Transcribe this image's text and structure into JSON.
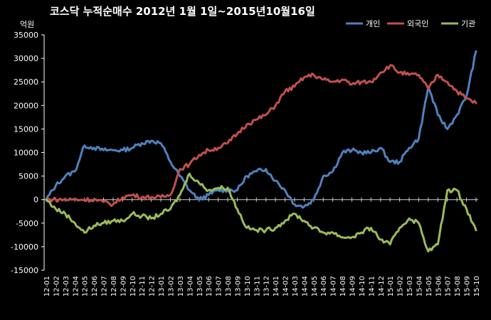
{
  "chart_data": {
    "type": "line",
    "title": "코스닥  누적순매수 2012년 1월 1일~2015년10월16일",
    "ylabel": "억원",
    "xlabel": "",
    "ylim": [
      -15000,
      35000
    ],
    "y_ticks": [
      35000,
      30000,
      25000,
      20000,
      15000,
      10000,
      5000,
      0,
      -5000,
      -10000,
      -15000
    ],
    "categories": [
      "12-01",
      "12-02",
      "12-03",
      "12-04",
      "12-05",
      "12-06",
      "12-07",
      "12-08",
      "12-09",
      "12-10",
      "12-11",
      "12-12",
      "13-01",
      "13-02",
      "13-03",
      "13-04",
      "13-05",
      "13-06",
      "13-07",
      "13-08",
      "13-09",
      "13-10",
      "13-11",
      "13-12",
      "14-01",
      "14-02",
      "14-03",
      "14-04",
      "14-05",
      "14-06",
      "14-07",
      "14-08",
      "14-09",
      "14-10",
      "14-11",
      "14-12",
      "15-01",
      "15-02",
      "15-03",
      "15-04",
      "15-05",
      "15-06",
      "15-07",
      "15-08",
      "15-09",
      "15-10"
    ],
    "legend_position": "top-right",
    "grid": false,
    "series": [
      {
        "name": "개인",
        "color": "#4F81BD",
        "values": [
          0,
          3000,
          5000,
          6000,
          11500,
          11000,
          10500,
          10500,
          10500,
          11000,
          12000,
          12500,
          12000,
          8000,
          5000,
          2000,
          0,
          1000,
          2000,
          2000,
          2000,
          5000,
          6000,
          6500,
          4000,
          2000,
          -1000,
          -1500,
          0,
          5000,
          6000,
          10000,
          10500,
          10000,
          10000,
          11000,
          8000,
          8000,
          11000,
          13000,
          24000,
          18000,
          15000,
          18000,
          22000,
          31500
        ]
      },
      {
        "name": "외국인",
        "color": "#C0504D",
        "values": [
          0,
          0,
          0,
          0,
          0,
          0,
          -500,
          -1000,
          500,
          1000,
          500,
          500,
          500,
          1000,
          6500,
          7500,
          9500,
          10500,
          11000,
          12000,
          14000,
          16000,
          17000,
          18000,
          20000,
          23000,
          24000,
          26000,
          26500,
          25500,
          25000,
          25500,
          24500,
          25000,
          25000,
          27000,
          28500,
          27000,
          26500,
          26500,
          23500,
          26500,
          25000,
          23000,
          21500,
          20500
        ]
      },
      {
        "name": "기관",
        "color": "#9BBB59",
        "values": [
          0,
          -2000,
          -3000,
          -5000,
          -7000,
          -5500,
          -5000,
          -4500,
          -4500,
          -3000,
          -3500,
          -4000,
          -3000,
          -2000,
          1000,
          5500,
          3500,
          2000,
          2500,
          2500,
          -2000,
          -6000,
          -6500,
          -6500,
          -6000,
          -4500,
          -3000,
          -4500,
          -6000,
          -7000,
          -7000,
          -8000,
          -8000,
          -7000,
          -6000,
          -8500,
          -9500,
          -6000,
          -4000,
          -5000,
          -11000,
          -9500,
          2000,
          2000,
          -2000,
          -6500
        ]
      }
    ]
  }
}
